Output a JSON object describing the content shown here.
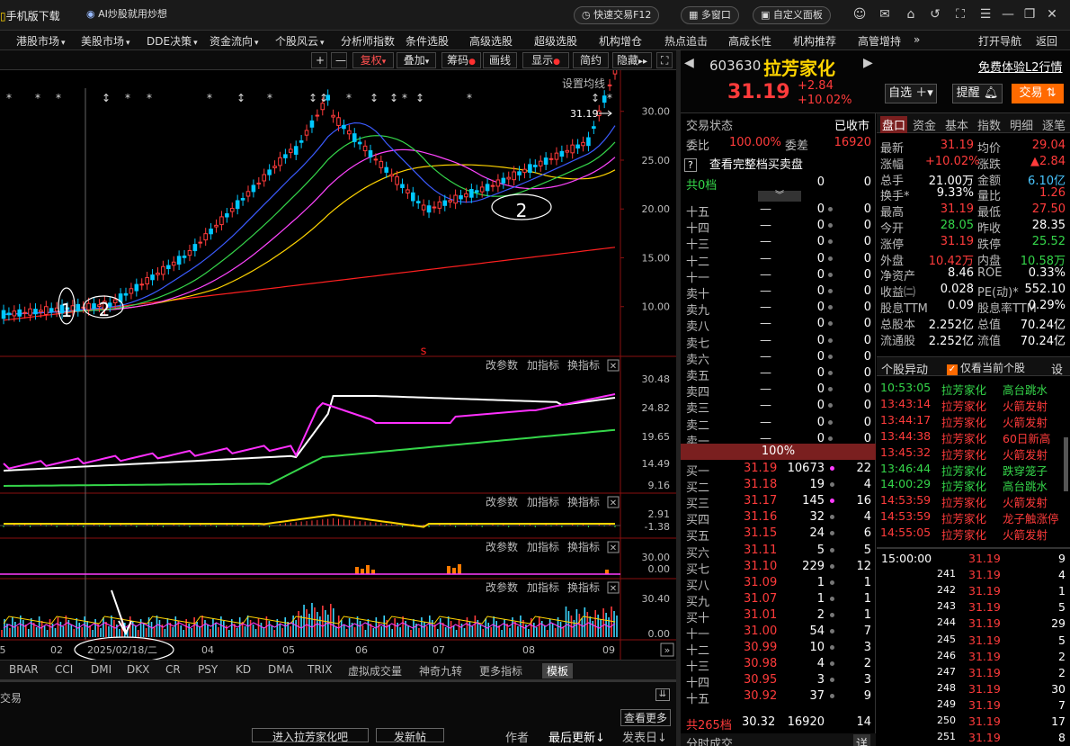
{
  "titlebar": {
    "mobile_download": "手机版下载",
    "ai_link": "AI炒股就用炒想",
    "quick_trade": "快速交易F12",
    "multi_window": "多窗口",
    "custom_panel": "自定义面板"
  },
  "menu": [
    "港股市场",
    "美股市场",
    "DDE决策",
    "资金流向",
    "个股风云",
    "分析师指数",
    "条件选股",
    "高级选股",
    "超级选股",
    "机构增仓",
    "热点追击",
    "高成长性",
    "机构推荐",
    "高管增持",
    "打开导航",
    "返回"
  ],
  "chart_toolbar": {
    "buttons": [
      "+",
      "—",
      "复权",
      "叠加",
      "筹码",
      "画线",
      "显示",
      "简约",
      "隐藏"
    ],
    "setting": "设置均线"
  },
  "chart_data": [
    {
      "type": "candlestick",
      "title": "",
      "price_axis_ticks": [
        "30.00",
        "25.00",
        "20.00",
        "15.00",
        "10.00"
      ],
      "last_price_label": "31.19",
      "x_tick_labels": [
        "5",
        "02",
        "2025/02/18/二",
        "04",
        "05",
        "06",
        "07",
        "08",
        "09"
      ],
      "annotations": [
        "1",
        "2",
        "2"
      ],
      "event_marks": [
        "s"
      ]
    },
    {
      "type": "line",
      "axis_ticks": [
        "30.48",
        "24.82",
        "19.65",
        "14.49",
        "9.16"
      ]
    },
    {
      "type": "line",
      "axis_ticks": [
        "2.91",
        "-1.38"
      ]
    },
    {
      "type": "bar",
      "axis_ticks": [
        "30.00",
        "0.00"
      ]
    },
    {
      "type": "bar",
      "axis_ticks": [
        "30.40",
        "0.00"
      ]
    }
  ],
  "panel_actions": {
    "param": "改参数",
    "add": "加指标",
    "swap": "换指标"
  },
  "indicator_tabs": [
    "BRAR",
    "CCI",
    "DMI",
    "DKX",
    "CR",
    "PSY",
    "KD",
    "DMA",
    "TRIX",
    "虚拟成交量",
    "神奇九转",
    "更多指标",
    "模板"
  ],
  "bottom": {
    "trade": "交易",
    "view_more": "查看更多",
    "forum": "进入拉芳家化吧",
    "post": "发新帖",
    "author": "作者",
    "last_update": "最后更新",
    "post_date": "发表日"
  },
  "stock": {
    "code": "603630",
    "name": "拉芳家化",
    "price": "31.19",
    "change": "+2.84",
    "change_pct": "+10.02%",
    "l2": "免费体验L2行情",
    "watchlist": "自选",
    "alert": "提醒",
    "trade": "交易"
  },
  "orderbook": {
    "status_label": "交易状态",
    "status": "已收市",
    "ratio_label": "委比",
    "ratio": "100.00%",
    "diff_label": "委差",
    "diff": "16920",
    "full_link": "查看完整档买卖盘",
    "total_label": "共0档",
    "total_v1": "0",
    "total_v2": "0",
    "asks": [
      [
        "十五",
        "—",
        "0",
        "0"
      ],
      [
        "十四",
        "—",
        "0",
        "0"
      ],
      [
        "十三",
        "—",
        "0",
        "0"
      ],
      [
        "十二",
        "—",
        "0",
        "0"
      ],
      [
        "十一",
        "—",
        "0",
        "0"
      ],
      [
        "卖十",
        "—",
        "0",
        "0"
      ],
      [
        "卖九",
        "—",
        "0",
        "0"
      ],
      [
        "卖八",
        "—",
        "0",
        "0"
      ],
      [
        "卖七",
        "—",
        "0",
        "0"
      ],
      [
        "卖六",
        "—",
        "0",
        "0"
      ],
      [
        "卖五",
        "—",
        "0",
        "0"
      ],
      [
        "卖四",
        "—",
        "0",
        "0"
      ],
      [
        "卖三",
        "—",
        "0",
        "0"
      ],
      [
        "卖二",
        "—",
        "0",
        "0"
      ],
      [
        "卖一",
        "—",
        "0",
        "0"
      ]
    ],
    "mid_pct": "100%",
    "bids": [
      [
        "买一",
        "31.19",
        "10673",
        "22"
      ],
      [
        "买二",
        "31.18",
        "19",
        "4"
      ],
      [
        "买三",
        "31.17",
        "145",
        "16"
      ],
      [
        "买四",
        "31.16",
        "32",
        "4"
      ],
      [
        "买五",
        "31.15",
        "24",
        "6"
      ],
      [
        "买六",
        "31.11",
        "5",
        "5"
      ],
      [
        "买七",
        "31.10",
        "229",
        "12"
      ],
      [
        "买八",
        "31.09",
        "1",
        "1"
      ],
      [
        "买九",
        "31.07",
        "1",
        "1"
      ],
      [
        "买十",
        "31.01",
        "2",
        "1"
      ],
      [
        "十一",
        "31.00",
        "54",
        "7"
      ],
      [
        "十二",
        "30.99",
        "10",
        "3"
      ],
      [
        "十三",
        "30.98",
        "4",
        "2"
      ],
      [
        "十四",
        "30.95",
        "3",
        "3"
      ],
      [
        "十五",
        "30.92",
        "37",
        "9"
      ]
    ],
    "bid_total_label": "共265档",
    "bid_total_price": "30.32",
    "bid_total_vol": "16920",
    "bid_total_cnt": "14",
    "footer": "分时成交",
    "footer_btn": "详"
  },
  "quote_tabs": [
    "盘口",
    "资金",
    "基本",
    "指数",
    "明细",
    "逐笔"
  ],
  "quote": [
    [
      "最新",
      "31.19",
      "均价",
      "29.04"
    ],
    [
      "涨幅",
      "+10.02%",
      "涨跌",
      "▲2.84"
    ],
    [
      "总手",
      "21.00万",
      "金额",
      "6.10亿"
    ],
    [
      "换手*",
      "9.33%",
      "量比",
      "1.26"
    ],
    [
      "最高",
      "31.19",
      "最低",
      "27.50"
    ],
    [
      "今开",
      "28.05",
      "昨收",
      "28.35"
    ],
    [
      "涨停",
      "31.19",
      "跌停",
      "25.52"
    ],
    [
      "外盘",
      "10.42万",
      "内盘",
      "10.58万"
    ],
    [
      "净资产",
      "8.46",
      "ROE",
      "0.33%"
    ],
    [
      "收益㈡",
      "0.028",
      "PE(动)*",
      "552.10"
    ],
    [
      "股息TTM",
      "0.09",
      "股息率TTM",
      "0.29%"
    ],
    [
      "总股本",
      "2.252亿",
      "总值",
      "70.24亿"
    ],
    [
      "流通股",
      "2.252亿",
      "流值",
      "70.24亿"
    ]
  ],
  "abnormal": {
    "title": "个股异动",
    "only_current": "仅看当前个股",
    "settings": "设",
    "items": [
      [
        "10:53:05",
        "拉芳家化",
        "高台跳水"
      ],
      [
        "13:43:14",
        "拉芳家化",
        "火箭发射"
      ],
      [
        "13:44:17",
        "拉芳家化",
        "火箭发射"
      ],
      [
        "13:44:38",
        "拉芳家化",
        "60日新高"
      ],
      [
        "13:45:32",
        "拉芳家化",
        "火箭发射"
      ],
      [
        "13:46:44",
        "拉芳家化",
        "跌穿笼子"
      ],
      [
        "14:00:29",
        "拉芳家化",
        "高台跳水"
      ],
      [
        "14:53:59",
        "拉芳家化",
        "火箭发射"
      ],
      [
        "14:53:59",
        "拉芳家化",
        "龙子触涨停"
      ],
      [
        "14:55:05",
        "拉芳家化",
        "火箭发射"
      ]
    ]
  },
  "ticks": [
    [
      "15:00:00",
      "31.19",
      "9"
    ],
    [
      "241",
      "31.19",
      "4"
    ],
    [
      "242",
      "31.19",
      "1"
    ],
    [
      "243",
      "31.19",
      "5"
    ],
    [
      "244",
      "31.19",
      "29"
    ],
    [
      "245",
      "31.19",
      "5"
    ],
    [
      "246",
      "31.19",
      "2"
    ],
    [
      "247",
      "31.19",
      "2"
    ],
    [
      "248",
      "31.19",
      "30"
    ],
    [
      "249",
      "31.19",
      "7"
    ],
    [
      "250",
      "31.19",
      "17"
    ],
    [
      "251",
      "31.19",
      "8"
    ]
  ],
  "colors": {
    "up": "#ff3b3b",
    "down": "#35d64a",
    "ma5": "#ffffff",
    "ma10": "#ffd400",
    "ma20": "#ff44ff",
    "ma30": "#35d64a",
    "ma60": "#3b5bff",
    "ma120": "#ff2020",
    "accent": "#ff6a00"
  }
}
